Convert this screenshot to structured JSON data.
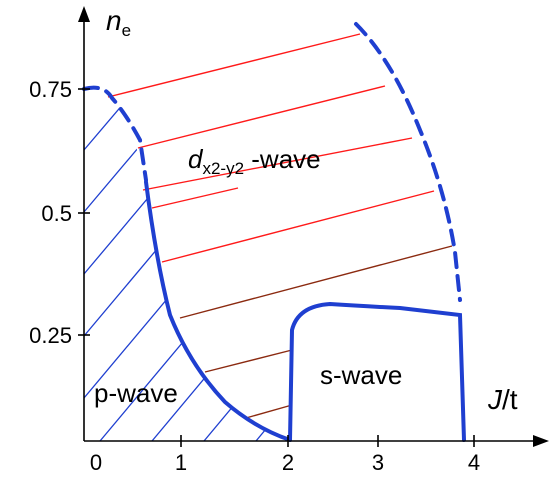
{
  "diagram": {
    "x_axis": {
      "title_main": "J",
      "title_rest": "/t",
      "ticks": [
        "0",
        "1",
        "2",
        "3",
        "4"
      ]
    },
    "y_axis": {
      "title_main": "n",
      "title_sub": "e",
      "ticks": [
        "0.25",
        "0.5",
        "0.75"
      ]
    },
    "regions": {
      "d_wave_italic": "d",
      "d_wave_sub": "x2-y2",
      "d_wave_rest": " -wave",
      "p_wave": "p-wave",
      "s_wave": "s-wave"
    },
    "colors": {
      "boundary": "#1f3fd0",
      "p_hatch": "#1f3fd0",
      "d_hatch": "#ff1a1a",
      "d_hatch_dark": "#8b2a10",
      "axis": "#000000"
    }
  }
}
